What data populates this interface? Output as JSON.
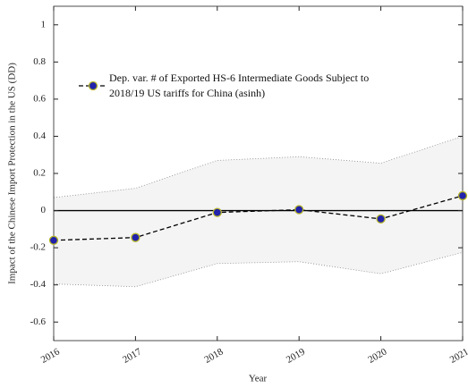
{
  "chart_data": {
    "type": "line",
    "x": [
      2016,
      2017,
      2018,
      2019,
      2020,
      2021
    ],
    "series": [
      {
        "name": "Dep. var. # of Exported HS-6 Intermediate Goods Subject to 2018/19 US tariffs for China (asinh)",
        "color": "#2222aa",
        "values": [
          -0.16,
          -0.145,
          -0.01,
          0.005,
          -0.045,
          0.08
        ],
        "upper": [
          0.07,
          0.12,
          0.27,
          0.29,
          0.255,
          0.4
        ],
        "lower": [
          -0.395,
          -0.41,
          -0.285,
          -0.275,
          -0.34,
          -0.225
        ]
      }
    ],
    "xlabel": "Year",
    "ylabel": "Impact of the Chinese Import Protection in the US (DD)",
    "xlim": [
      2016,
      2021
    ],
    "xticks": [
      2016,
      2017,
      2018,
      2019,
      2020,
      2021
    ],
    "ylim": [
      -0.7,
      1.1
    ],
    "yticks": [
      -0.6,
      -0.4,
      -0.2,
      0,
      0.2,
      0.4,
      0.6,
      0.8,
      1
    ],
    "legend": "upper-left"
  }
}
